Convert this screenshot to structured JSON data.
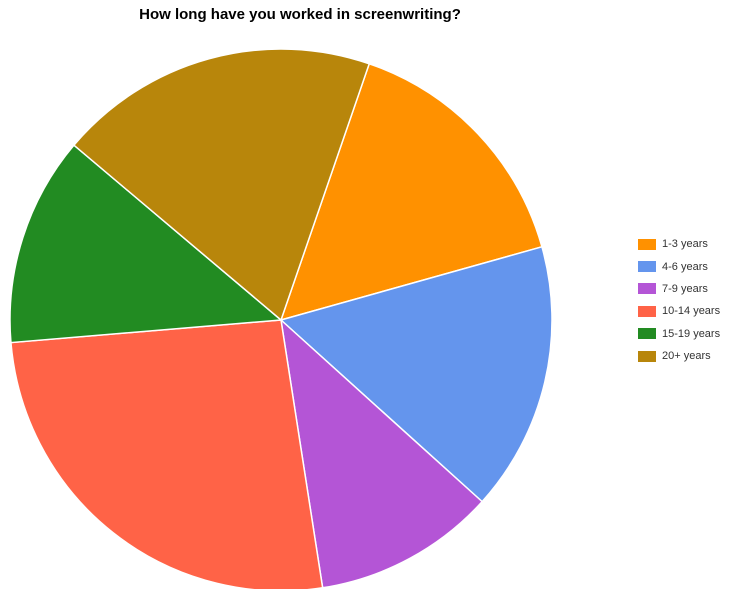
{
  "chart_data": {
    "type": "pie",
    "title": "How long have you worked in screenwriting?",
    "legend_position": "right",
    "slices": [
      {
        "label": "1-3 years",
        "value": 16.0,
        "color": "#FF9100"
      },
      {
        "label": "4-6 years",
        "value": 16.7,
        "color": "#6495ED"
      },
      {
        "label": "7-9 years",
        "value": 11.3,
        "color": "#B455D6"
      },
      {
        "label": "10-14 years",
        "value": 27.2,
        "color": "#FF6347"
      },
      {
        "label": "15-19 years",
        "value": 13.0,
        "color": "#228B22"
      },
      {
        "label": "20+ years",
        "value": 19.9,
        "color": "#B8860B"
      }
    ]
  }
}
